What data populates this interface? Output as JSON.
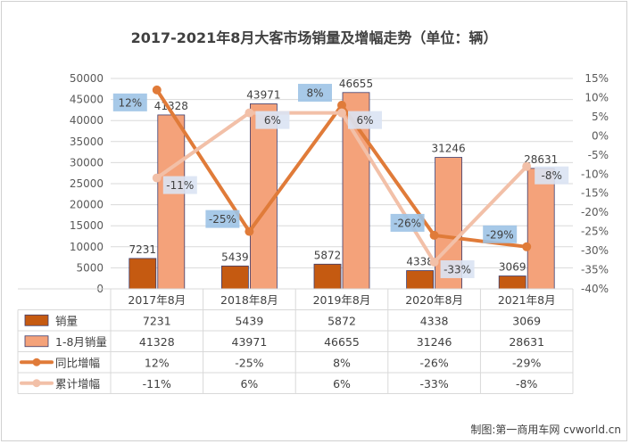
{
  "chart_data": {
    "type": "bar",
    "title": "2017-2021年8月大客市场销量及增幅走势（单位：辆）",
    "categories": [
      "2017年8月",
      "2018年8月",
      "2019年8月",
      "2020年8月",
      "2021年8月"
    ],
    "series": [
      {
        "name": "销量",
        "kind": "bar",
        "axis": "left",
        "values": [
          7231,
          5439,
          5872,
          4338,
          3069
        ],
        "labels": [
          "7231",
          "5439",
          "5872",
          "4338",
          "3069"
        ],
        "color": "#c55a11"
      },
      {
        "name": "1-8月销量",
        "kind": "bar",
        "axis": "left",
        "values": [
          41328,
          43971,
          46655,
          31246,
          28631
        ],
        "labels": [
          "41328",
          "43971",
          "46655",
          "31246",
          "28631"
        ],
        "color": "#f4a27a"
      },
      {
        "name": "同比增幅",
        "kind": "line",
        "axis": "right",
        "values": [
          12,
          -25,
          8,
          -26,
          -29
        ],
        "labels": [
          "12%",
          "-25%",
          "8%",
          "-26%",
          "-29%"
        ],
        "color": "#e07b39"
      },
      {
        "name": "累计增幅",
        "kind": "line",
        "axis": "right",
        "values": [
          -11,
          6,
          6,
          -33,
          -8
        ],
        "labels": [
          "-11%",
          "6%",
          "6%",
          "-33%",
          "-8%"
        ],
        "color": "#f2c0a8"
      }
    ],
    "y_left": {
      "min": 0,
      "max": 50000,
      "ticks": [
        "0",
        "5000",
        "10000",
        "15000",
        "20000",
        "25000",
        "30000",
        "35000",
        "40000",
        "45000",
        "50000"
      ]
    },
    "y_right": {
      "min": -40,
      "max": 15,
      "ticks": [
        "-40%",
        "-35%",
        "-30%",
        "-25%",
        "-20%",
        "-15%",
        "-10%",
        "-5%",
        "0%",
        "5%",
        "10%",
        "15%"
      ]
    },
    "grid": true,
    "legend": "data-table-bottom"
  },
  "credit": "制图:第一商用车网 cvworld.cn"
}
